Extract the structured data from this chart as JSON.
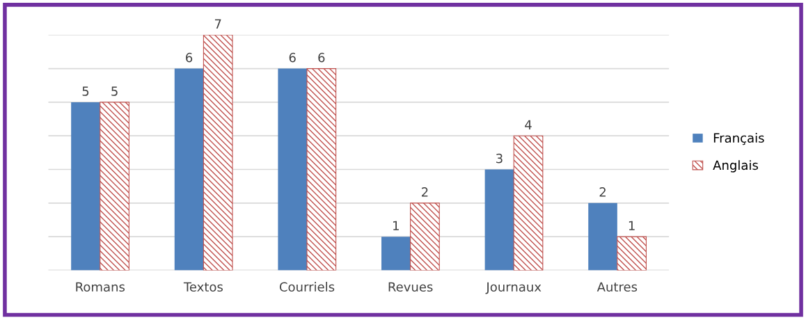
{
  "chart_data": {
    "type": "bar",
    "categories": [
      "Romans",
      "Textos",
      "Courriels",
      "Revues",
      "Journaux",
      "Autres"
    ],
    "series": [
      {
        "name": "Français",
        "color": "#4f81bd",
        "values": [
          5,
          6,
          6,
          1,
          3,
          2
        ]
      },
      {
        "name": "Anglais",
        "color": "#c0504d",
        "values": [
          5,
          7,
          6,
          2,
          4,
          1
        ]
      }
    ],
    "ylim": [
      0,
      7
    ],
    "yticks": [
      {
        "value": 0,
        "label": null
      },
      {
        "value": 1,
        "label": null
      },
      {
        "value": 2,
        "label": null
      },
      {
        "value": 3,
        "label": null
      },
      {
        "value": 4,
        "label": null
      },
      {
        "value": 5,
        "label": null
      },
      {
        "value": 6,
        "label": null
      },
      {
        "value": 7,
        "label": null
      }
    ],
    "tick_labels": "x",
    "grid": "y",
    "legend": "right",
    "data_labels": true
  }
}
